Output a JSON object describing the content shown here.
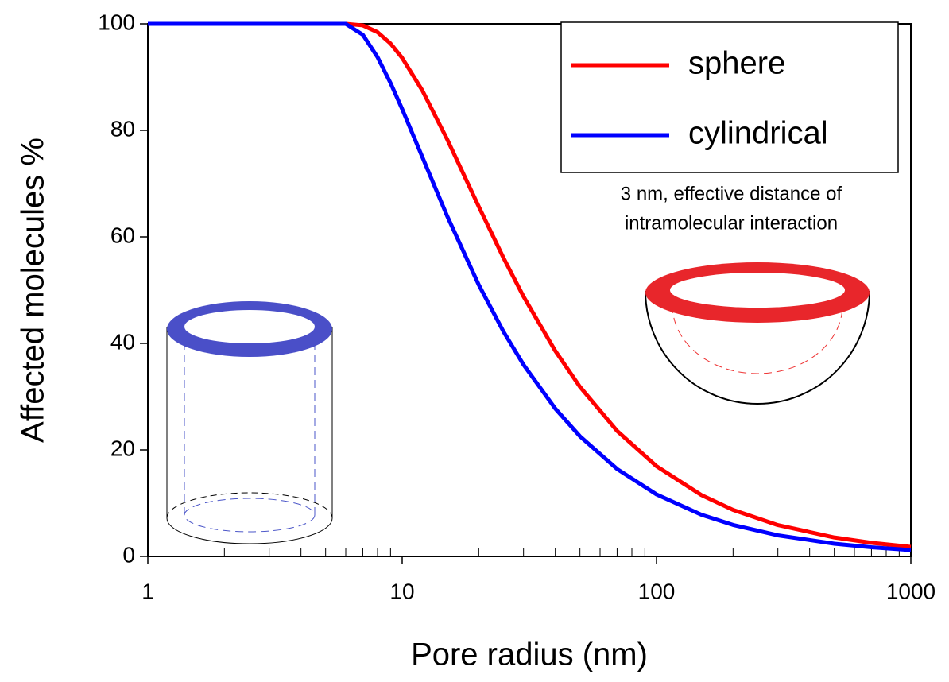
{
  "chart_data": {
    "type": "line",
    "xlabel": "Pore radius (nm)",
    "ylabel": "Affected molecules %",
    "annotation": [
      "3 nm, effective distance of",
      "intramolecular interaction"
    ],
    "xscale": "log",
    "xlim": [
      1,
      1000
    ],
    "xticks": [
      1,
      10,
      100,
      1000
    ],
    "xminorticks": [
      2,
      3,
      4,
      5,
      6,
      7,
      8,
      9,
      20,
      30,
      40,
      50,
      60,
      70,
      80,
      90,
      200,
      300,
      400,
      500,
      600,
      700,
      800,
      900
    ],
    "ylim": [
      0,
      100
    ],
    "yticks": [
      0,
      20,
      40,
      60,
      80,
      100
    ],
    "legend": "upper right",
    "x": [
      1,
      2,
      4,
      6,
      7,
      8,
      9,
      10,
      12,
      15,
      20,
      25,
      30,
      40,
      50,
      70,
      100,
      150,
      200,
      300,
      500,
      700,
      1000
    ],
    "series": [
      {
        "name": "sphere",
        "color": "#ff0000",
        "values": [
          100,
          100,
          100,
          100,
          99.71,
          98.44,
          96.3,
          93.6,
          87.5,
          78.4,
          65.7,
          56.1,
          48.8,
          38.59,
          31.85,
          23.57,
          16.94,
          11.53,
          8.73,
          5.88,
          3.56,
          2.55,
          1.79
        ]
      },
      {
        "name": "cylindrical",
        "color": "#0000ff",
        "values": [
          100,
          100,
          100,
          100,
          97.96,
          93.75,
          88.89,
          84,
          75,
          64,
          51,
          42.24,
          36,
          27.75,
          22.56,
          16.41,
          11.64,
          7.84,
          5.91,
          3.96,
          2.39,
          1.71,
          1.2
        ]
      }
    ]
  }
}
